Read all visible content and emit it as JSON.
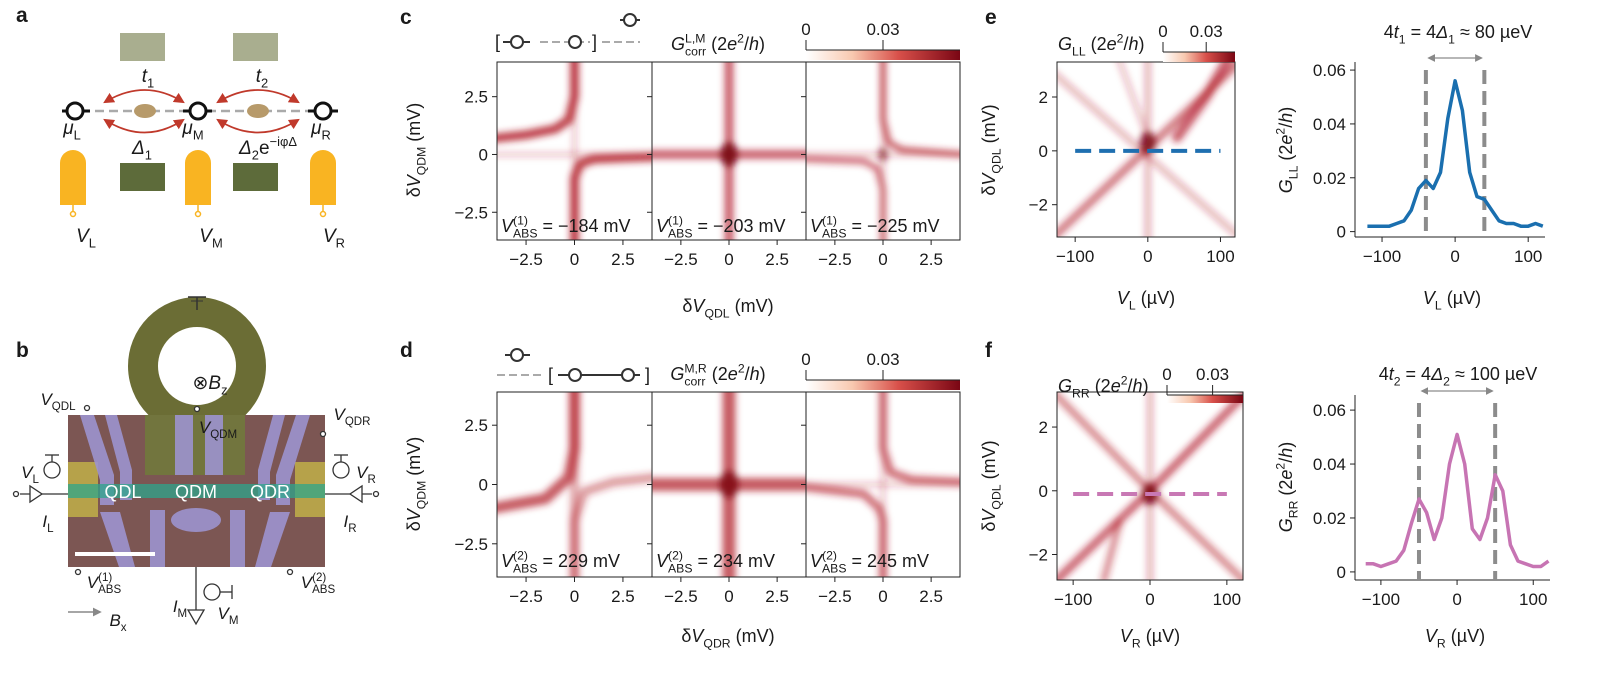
{
  "texts": {
    "a": [
      {
        "b": "a"
      }
    ],
    "b": [
      {
        "b": "b"
      }
    ],
    "c": [
      {
        "b": "c"
      }
    ],
    "d": [
      {
        "b": "d"
      }
    ],
    "e": [
      {
        "b": "e"
      }
    ],
    "f": [
      {
        "b": "f"
      }
    ],
    "a_t1": [
      {
        "i": "t"
      },
      {
        "sub": "1"
      }
    ],
    "a_t2": [
      {
        "i": "t"
      },
      {
        "sub": "2"
      }
    ],
    "a_muL": [
      {
        "i": "μ"
      },
      {
        "sub": "L"
      }
    ],
    "a_muM": [
      {
        "i": "μ"
      },
      {
        "sub": "M"
      }
    ],
    "a_muR": [
      {
        "i": "μ"
      },
      {
        "sub": "R"
      }
    ],
    "a_d1": [
      {
        "i": "Δ"
      },
      {
        "sub": "1"
      }
    ],
    "a_d2": [
      {
        "i": "Δ"
      },
      {
        "sub": "2"
      },
      {
        "t": "e"
      },
      {
        "sup": "−iφ"
      },
      {
        "sup": "Δ"
      }
    ],
    "a_VL": [
      {
        "i": "V"
      },
      {
        "sub": "L"
      }
    ],
    "a_VM": [
      {
        "i": "V"
      },
      {
        "sub": "M"
      }
    ],
    "a_VR": [
      {
        "i": "V"
      },
      {
        "sub": "R"
      }
    ],
    "b_VQDL": [
      {
        "i": "V"
      },
      {
        "sub": "QDL"
      }
    ],
    "b_VQDM": [
      {
        "i": "V"
      },
      {
        "sub": "QDM"
      }
    ],
    "b_VQDR": [
      {
        "i": "V"
      },
      {
        "sub": "QDR"
      }
    ],
    "b_Bz": [
      {
        "t": "⊗"
      },
      {
        "i": "B"
      },
      {
        "sub": "z"
      }
    ],
    "b_VL": [
      {
        "i": "V"
      },
      {
        "sub": "L"
      }
    ],
    "b_VR": [
      {
        "i": "V"
      },
      {
        "sub": "R"
      }
    ],
    "b_IL": [
      {
        "i": "I"
      },
      {
        "sub": "L"
      }
    ],
    "b_IR": [
      {
        "i": "I"
      },
      {
        "sub": "R"
      }
    ],
    "b_QDL": [
      {
        "t": "QDL"
      }
    ],
    "b_QDM": [
      {
        "t": "QDM"
      }
    ],
    "b_QDR": [
      {
        "t": "QDR"
      }
    ],
    "b_VABS1": [
      {
        "i": "V"
      },
      {
        "sup": "(1)"
      },
      {
        "under": "ABS"
      }
    ],
    "b_VABS2": [
      {
        "i": "V"
      },
      {
        "sup": "(2)"
      },
      {
        "under": "ABS"
      }
    ],
    "b_IM": [
      {
        "i": "I"
      },
      {
        "sub": "M"
      }
    ],
    "b_VM": [
      {
        "i": "V"
      },
      {
        "sub": "M"
      }
    ],
    "b_Bx": [
      {
        "i": "B"
      },
      {
        "sub": "x"
      }
    ],
    "c_cbar": [
      {
        "i": "G"
      },
      {
        "sup": "L,M"
      },
      {
        "under": "corr"
      },
      {
        "t": " (2"
      },
      {
        "i": "e"
      },
      {
        "sup": "2"
      },
      {
        "t": "/"
      },
      {
        "i": "h"
      },
      {
        "t": ")"
      }
    ],
    "c_ylabel": [
      {
        "t": "δ"
      },
      {
        "i": "V"
      },
      {
        "sub": "QDM"
      },
      {
        "t": " (mV)"
      }
    ],
    "c_xlabel": [
      {
        "t": "δ"
      },
      {
        "i": "V"
      },
      {
        "sub": "QDL"
      },
      {
        "t": " (mV)"
      }
    ],
    "c_in1": [
      {
        "i": "V"
      },
      {
        "sup": "(1)"
      },
      {
        "under": "ABS"
      },
      {
        "t": " = −184 mV"
      }
    ],
    "c_in2": [
      {
        "i": "V"
      },
      {
        "sup": "(1)"
      },
      {
        "under": "ABS"
      },
      {
        "t": " = −203 mV"
      }
    ],
    "c_in3": [
      {
        "i": "V"
      },
      {
        "sup": "(1)"
      },
      {
        "under": "ABS"
      },
      {
        "t": " = −225 mV"
      }
    ],
    "d_cbar": [
      {
        "i": "G"
      },
      {
        "sup": "M,R"
      },
      {
        "under": "corr"
      },
      {
        "t": " (2"
      },
      {
        "i": "e"
      },
      {
        "sup": "2"
      },
      {
        "t": "/"
      },
      {
        "i": "h"
      },
      {
        "t": ")"
      }
    ],
    "d_ylabel": [
      {
        "t": "δ"
      },
      {
        "i": "V"
      },
      {
        "sub": "QDM"
      },
      {
        "t": " (mV)"
      }
    ],
    "d_xlabel": [
      {
        "t": "δ"
      },
      {
        "i": "V"
      },
      {
        "sub": "QDR"
      },
      {
        "t": " (mV)"
      }
    ],
    "d_in1": [
      {
        "i": "V"
      },
      {
        "sup": "(2)"
      },
      {
        "under": "ABS"
      },
      {
        "t": " = 229 mV"
      }
    ],
    "d_in2": [
      {
        "i": "V"
      },
      {
        "sup": "(2)"
      },
      {
        "under": "ABS"
      },
      {
        "t": " = 234 mV"
      }
    ],
    "d_in3": [
      {
        "i": "V"
      },
      {
        "sup": "(2)"
      },
      {
        "under": "ABS"
      },
      {
        "t": " = 245 mV"
      }
    ],
    "e_cbar": [
      {
        "i": "G"
      },
      {
        "sub": "LL"
      },
      {
        "t": " (2"
      },
      {
        "i": "e"
      },
      {
        "sup": "2"
      },
      {
        "t": "/"
      },
      {
        "i": "h"
      },
      {
        "t": ")"
      }
    ],
    "e_ylabel": [
      {
        "t": "δ"
      },
      {
        "i": "V"
      },
      {
        "sub": "QDL"
      },
      {
        "t": " (mV)"
      }
    ],
    "e_xlabel": [
      {
        "i": "V"
      },
      {
        "sub": "L"
      },
      {
        "t": " (µV)"
      }
    ],
    "e2_title": [
      {
        "t": "4"
      },
      {
        "i": "t"
      },
      {
        "sub": "1"
      },
      {
        "t": " = 4"
      },
      {
        "i": "Δ"
      },
      {
        "sub": "1"
      },
      {
        "t": " ≈ 80 µeV"
      }
    ],
    "e2_ylabel": [
      {
        "i": "G"
      },
      {
        "sub": "LL"
      },
      {
        "t": " (2"
      },
      {
        "i": "e"
      },
      {
        "sup": "2"
      },
      {
        "t": "/"
      },
      {
        "i": "h"
      },
      {
        "t": ")"
      }
    ],
    "e2_xlabel": [
      {
        "i": "V"
      },
      {
        "sub": "L"
      },
      {
        "t": " (µV)"
      }
    ],
    "f_cbar": [
      {
        "i": "G"
      },
      {
        "sub": "RR"
      },
      {
        "t": " (2"
      },
      {
        "i": "e"
      },
      {
        "sup": "2"
      },
      {
        "t": "/"
      },
      {
        "i": "h"
      },
      {
        "t": ")"
      }
    ],
    "f_ylabel": [
      {
        "t": "δ"
      },
      {
        "i": "V"
      },
      {
        "sub": "QDL"
      },
      {
        "t": " (mV)"
      }
    ],
    "f_xlabel": [
      {
        "i": "V"
      },
      {
        "sub": "R"
      },
      {
        "t": " (µV)"
      }
    ],
    "f2_title": [
      {
        "t": "4"
      },
      {
        "i": "t"
      },
      {
        "sub": "2"
      },
      {
        "t": " = 4"
      },
      {
        "i": "Δ"
      },
      {
        "sub": "2"
      },
      {
        "t": " ≈ 100 µeV"
      }
    ],
    "f2_ylabel": [
      {
        "i": "G"
      },
      {
        "sub": "RR"
      },
      {
        "t": " (2"
      },
      {
        "i": "e"
      },
      {
        "sup": "2"
      },
      {
        "t": "/"
      },
      {
        "i": "h"
      },
      {
        "t": ")"
      }
    ],
    "f2_xlabel": [
      {
        "i": "V"
      },
      {
        "sub": "R"
      },
      {
        "t": " (µV)"
      }
    ]
  },
  "heatmaps": {
    "c": {
      "xlim": [
        -4,
        4
      ],
      "ylim": [
        -3.7,
        4
      ],
      "xticks": [
        {
          "value": -2.5,
          "label": "−2.5"
        },
        0,
        2.5
      ],
      "yticks": [
        {
          "value": -2.5,
          "label": "−2.5"
        },
        0,
        2.5
      ],
      "colorbar": {
        "lim": [
          0,
          0.06
        ],
        "ticks": [
          0,
          0.03
        ]
      }
    },
    "d": {
      "xlim": [
        -4,
        4
      ],
      "ylim": [
        -3.9,
        3.9
      ],
      "xticks": [
        {
          "value": -2.5,
          "label": "−2.5"
        },
        0,
        2.5
      ],
      "yticks": [
        {
          "value": -2.5,
          "label": "−2.5"
        },
        0,
        2.5
      ],
      "colorbar": {
        "lim": [
          0,
          0.06
        ],
        "ticks": [
          0,
          0.03
        ]
      }
    },
    "e": {
      "xlim": [
        -125,
        120
      ],
      "ylim": [
        -3.2,
        3.3
      ],
      "xticks": [
        {
          "value": -100,
          "label": "−100"
        },
        0,
        100
      ],
      "yticks": [
        {
          "value": -2,
          "label": "−2"
        },
        0,
        2
      ],
      "colorbar": {
        "lim": [
          0,
          0.05
        ],
        "ticks": [
          0,
          0.03
        ]
      },
      "cut_y": 0,
      "cut_color": "#1f6fb0"
    },
    "f": {
      "xlim": [
        -121,
        121
      ],
      "ylim": [
        -2.8,
        3.1
      ],
      "xticks": [
        {
          "value": -100,
          "label": "−100"
        },
        0,
        100
      ],
      "yticks": [
        {
          "value": -2,
          "label": "−2"
        },
        0,
        2
      ],
      "colorbar": {
        "lim": [
          0,
          0.05
        ],
        "ticks": [
          0,
          0.03
        ]
      },
      "cut_y": -0.1,
      "cut_color": "#c878b4"
    }
  },
  "chart_data": [
    {
      "type": "line",
      "x": [
        -120,
        -110,
        -100,
        -90,
        -80,
        -70,
        -60,
        -50,
        -40,
        -30,
        -20,
        -10,
        0,
        10,
        20,
        30,
        40,
        50,
        60,
        70,
        80,
        90,
        100,
        110,
        120
      ],
      "series": [
        {
          "color": "#1a6faf",
          "values": [
            0.002,
            0.002,
            0.002,
            0.002,
            0.003,
            0.004,
            0.008,
            0.016,
            0.019,
            0.016,
            0.022,
            0.042,
            0.056,
            0.045,
            0.022,
            0.013,
            0.012,
            0.008,
            0.004,
            0.003,
            0.003,
            0.002,
            0.002,
            0.003,
            0.002
          ]
        }
      ],
      "xlim": [
        -137,
        123
      ],
      "ylim": [
        -0.002,
        0.063
      ],
      "xticks": [
        {
          "value": -100,
          "label": "−100"
        },
        0,
        100
      ],
      "yticks": [
        0,
        0.02,
        0.04,
        0.06
      ],
      "markers": [
        -40,
        40
      ],
      "marker_color": "#8c8c8c"
    },
    {
      "type": "line",
      "x": [
        -120,
        -110,
        -100,
        -90,
        -80,
        -70,
        -60,
        -50,
        -40,
        -30,
        -20,
        -10,
        0,
        10,
        20,
        30,
        40,
        50,
        60,
        70,
        80,
        90,
        100,
        110,
        120
      ],
      "series": [
        {
          "color": "#c774b3",
          "values": [
            0.003,
            0.003,
            0.002,
            0.003,
            0.004,
            0.008,
            0.018,
            0.027,
            0.022,
            0.012,
            0.02,
            0.04,
            0.051,
            0.04,
            0.016,
            0.012,
            0.02,
            0.036,
            0.03,
            0.01,
            0.004,
            0.003,
            0.002,
            0.002,
            0.004
          ]
        }
      ],
      "xlim": [
        -134,
        122
      ],
      "ylim": [
        -0.003,
        0.0656
      ],
      "xticks": [
        {
          "value": -100,
          "label": "−100"
        },
        0,
        100
      ],
      "yticks": [
        0,
        0.02,
        0.04,
        0.06
      ],
      "markers": [
        -50,
        50
      ],
      "marker_color": "#8c8c8c"
    }
  ]
}
